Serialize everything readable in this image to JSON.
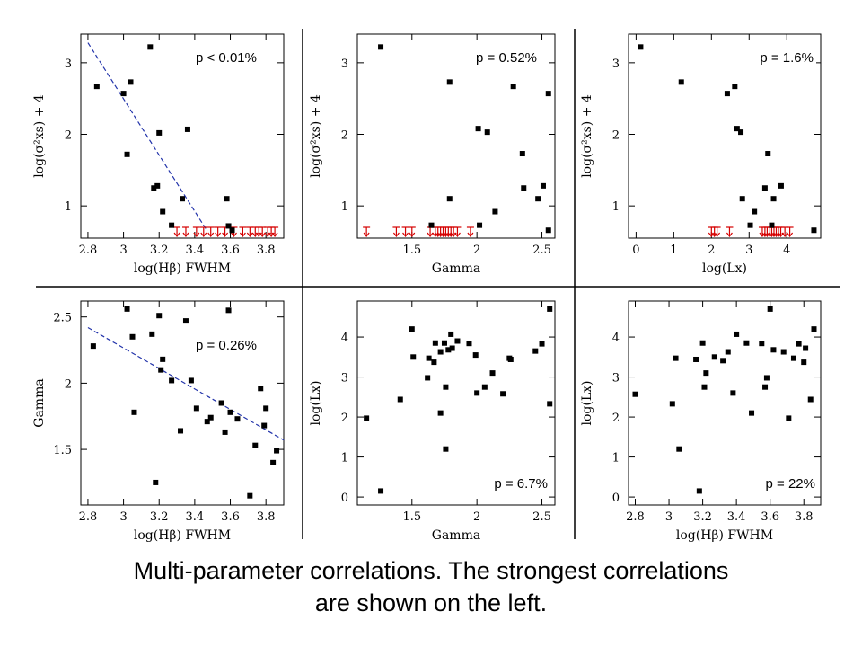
{
  "caption": {
    "line1": "Multi-parameter correlations.  The strongest correlations",
    "line2": "are shown on the left."
  },
  "colors": {
    "marker": "#000000",
    "upper_limit": "#d40000",
    "fit_line": "#2233aa",
    "divider": "#000000"
  },
  "chart_data": [
    {
      "type": "scatter",
      "xlabel": "log(Hβ)  FWHM",
      "ylabel": "log(σ²xs) + 4",
      "annotation": "p < 0.01%",
      "xticks": [
        "2.8",
        "3",
        "3.2",
        "3.4",
        "3.6",
        "3.8"
      ],
      "yticks": [
        "1",
        "2",
        "3"
      ],
      "xlim": [
        2.76,
        3.9
      ],
      "ylim": [
        0.55,
        3.4
      ],
      "points": [
        [
          2.85,
          2.67
        ],
        [
          3.0,
          2.57
        ],
        [
          3.02,
          1.72
        ],
        [
          3.04,
          2.73
        ],
        [
          3.15,
          3.22
        ],
        [
          3.17,
          1.25
        ],
        [
          3.19,
          1.28
        ],
        [
          3.2,
          2.02
        ],
        [
          3.22,
          0.92
        ],
        [
          3.27,
          0.73
        ],
        [
          3.33,
          1.1
        ],
        [
          3.36,
          2.07
        ],
        [
          3.58,
          1.1
        ],
        [
          3.59,
          0.72
        ],
        [
          3.61,
          0.66
        ]
      ],
      "upper_limits_x": [
        3.3,
        3.35,
        3.41,
        3.45,
        3.49,
        3.53,
        3.57,
        3.62,
        3.67,
        3.71,
        3.74,
        3.76,
        3.78,
        3.81,
        3.83,
        3.85
      ],
      "fit_line": [
        [
          2.8,
          3.28
        ],
        [
          3.47,
          0.65
        ]
      ]
    },
    {
      "type": "scatter",
      "xlabel": "Gamma",
      "ylabel": "log(σ²xs) + 4",
      "annotation": "p = 0.52%",
      "xticks": [
        "1.5",
        "2",
        "2.5"
      ],
      "yticks": [
        "1",
        "2",
        "3"
      ],
      "xlim": [
        1.08,
        2.6
      ],
      "ylim": [
        0.55,
        3.4
      ],
      "points": [
        [
          1.26,
          3.22
        ],
        [
          1.65,
          0.73
        ],
        [
          1.79,
          2.73
        ],
        [
          1.79,
          1.1
        ],
        [
          2.01,
          2.08
        ],
        [
          2.02,
          0.73
        ],
        [
          2.08,
          2.03
        ],
        [
          2.14,
          0.92
        ],
        [
          2.28,
          2.67
        ],
        [
          2.35,
          1.73
        ],
        [
          2.36,
          1.25
        ],
        [
          2.47,
          1.1
        ],
        [
          2.51,
          1.28
        ],
        [
          2.55,
          2.57
        ],
        [
          2.55,
          0.66
        ]
      ],
      "upper_limits_x": [
        1.15,
        1.38,
        1.45,
        1.5,
        1.64,
        1.68,
        1.7,
        1.72,
        1.74,
        1.76,
        1.78,
        1.8,
        1.82,
        1.85,
        1.95
      ]
    },
    {
      "type": "scatter",
      "xlabel": "log(Lx)",
      "ylabel": "log(σ²xs) + 4",
      "annotation": "p = 1.6%",
      "xticks": [
        "0",
        "1",
        "2",
        "3",
        "4"
      ],
      "yticks": [
        "1",
        "2",
        "3"
      ],
      "xlim": [
        -0.2,
        4.9
      ],
      "ylim": [
        0.55,
        3.4
      ],
      "points": [
        [
          0.12,
          3.22
        ],
        [
          1.2,
          2.73
        ],
        [
          2.42,
          2.57
        ],
        [
          2.62,
          2.67
        ],
        [
          2.68,
          2.08
        ],
        [
          2.78,
          2.03
        ],
        [
          2.82,
          1.1
        ],
        [
          3.03,
          0.73
        ],
        [
          3.14,
          0.92
        ],
        [
          3.42,
          1.25
        ],
        [
          3.5,
          1.73
        ],
        [
          3.6,
          0.73
        ],
        [
          3.65,
          1.1
        ],
        [
          3.85,
          1.28
        ],
        [
          4.72,
          0.66
        ]
      ],
      "upper_limits_x": [
        2.0,
        2.08,
        2.15,
        2.48,
        3.35,
        3.42,
        3.48,
        3.55,
        3.6,
        3.66,
        3.72,
        3.78,
        3.84,
        3.95,
        4.08
      ]
    },
    {
      "type": "scatter",
      "xlabel": "log(Hβ)  FWHM",
      "ylabel": "Gamma",
      "annotation": "p = 0.26%",
      "xticks": [
        "2.8",
        "3",
        "3.2",
        "3.4",
        "3.6",
        "3.8"
      ],
      "yticks": [
        "1.5",
        "2",
        "2.5"
      ],
      "xlim": [
        2.76,
        3.9
      ],
      "ylim": [
        1.08,
        2.62
      ],
      "points": [
        [
          2.83,
          2.28
        ],
        [
          3.02,
          2.56
        ],
        [
          3.05,
          2.35
        ],
        [
          3.06,
          1.78
        ],
        [
          3.16,
          2.37
        ],
        [
          3.18,
          1.25
        ],
        [
          3.2,
          2.51
        ],
        [
          3.21,
          2.1
        ],
        [
          3.22,
          2.18
        ],
        [
          3.27,
          2.02
        ],
        [
          3.32,
          1.64
        ],
        [
          3.35,
          2.47
        ],
        [
          3.38,
          2.02
        ],
        [
          3.41,
          1.81
        ],
        [
          3.47,
          1.71
        ],
        [
          3.49,
          1.74
        ],
        [
          3.55,
          1.85
        ],
        [
          3.57,
          1.63
        ],
        [
          3.59,
          2.55
        ],
        [
          3.6,
          1.78
        ],
        [
          3.64,
          1.73
        ],
        [
          3.71,
          1.15
        ],
        [
          3.74,
          1.53
        ],
        [
          3.77,
          1.96
        ],
        [
          3.79,
          1.68
        ],
        [
          3.8,
          1.81
        ],
        [
          3.84,
          1.4
        ],
        [
          3.86,
          1.49
        ]
      ],
      "fit_line": [
        [
          2.8,
          2.42
        ],
        [
          3.9,
          1.57
        ]
      ]
    },
    {
      "type": "scatter",
      "xlabel": "Gamma",
      "ylabel": "log(Lx)",
      "annotation": "p = 6.7%",
      "xticks": [
        "1.5",
        "2",
        "2.5"
      ],
      "yticks": [
        "0",
        "1",
        "2",
        "3",
        "4"
      ],
      "xlim": [
        1.08,
        2.6
      ],
      "ylim": [
        -0.2,
        4.9
      ],
      "points": [
        [
          1.15,
          1.97
        ],
        [
          1.26,
          0.15
        ],
        [
          1.41,
          2.44
        ],
        [
          1.5,
          4.2
        ],
        [
          1.51,
          3.5
        ],
        [
          1.62,
          2.98
        ],
        [
          1.63,
          3.47
        ],
        [
          1.67,
          3.37
        ],
        [
          1.68,
          3.85
        ],
        [
          1.72,
          2.1
        ],
        [
          1.72,
          3.63
        ],
        [
          1.75,
          3.85
        ],
        [
          1.76,
          1.2
        ],
        [
          1.76,
          2.75
        ],
        [
          1.78,
          3.68
        ],
        [
          1.8,
          4.07
        ],
        [
          1.81,
          3.72
        ],
        [
          1.85,
          3.9
        ],
        [
          1.94,
          3.84
        ],
        [
          1.99,
          3.55
        ],
        [
          2.0,
          2.6
        ],
        [
          2.06,
          2.75
        ],
        [
          2.12,
          3.1
        ],
        [
          2.2,
          2.58
        ],
        [
          2.25,
          3.47
        ],
        [
          2.26,
          3.44
        ],
        [
          2.45,
          3.65
        ],
        [
          2.5,
          3.83
        ],
        [
          2.56,
          4.7
        ],
        [
          2.56,
          2.33
        ]
      ]
    },
    {
      "type": "scatter",
      "xlabel": "log(Hβ)  FWHM",
      "ylabel": "log(Lx)",
      "annotation": "p = 22%",
      "xticks": [
        "2.8",
        "3",
        "3.2",
        "3.4",
        "3.6",
        "3.8"
      ],
      "yticks": [
        "0",
        "1",
        "2",
        "3",
        "4"
      ],
      "xlim": [
        2.76,
        3.9
      ],
      "ylim": [
        -0.2,
        4.9
      ],
      "points": [
        [
          2.8,
          2.57
        ],
        [
          3.02,
          2.33
        ],
        [
          3.04,
          3.47
        ],
        [
          3.06,
          1.2
        ],
        [
          3.16,
          3.44
        ],
        [
          3.18,
          0.15
        ],
        [
          3.2,
          3.85
        ],
        [
          3.21,
          2.75
        ],
        [
          3.22,
          3.1
        ],
        [
          3.27,
          3.5
        ],
        [
          3.32,
          3.41
        ],
        [
          3.35,
          3.63
        ],
        [
          3.38,
          2.6
        ],
        [
          3.4,
          4.07
        ],
        [
          3.46,
          3.85
        ],
        [
          3.49,
          2.1
        ],
        [
          3.55,
          3.84
        ],
        [
          3.57,
          2.75
        ],
        [
          3.58,
          2.98
        ],
        [
          3.6,
          4.7
        ],
        [
          3.62,
          3.68
        ],
        [
          3.68,
          3.63
        ],
        [
          3.71,
          1.97
        ],
        [
          3.74,
          3.47
        ],
        [
          3.77,
          3.83
        ],
        [
          3.8,
          3.37
        ],
        [
          3.81,
          3.72
        ],
        [
          3.84,
          2.44
        ],
        [
          3.86,
          4.2
        ]
      ]
    }
  ]
}
